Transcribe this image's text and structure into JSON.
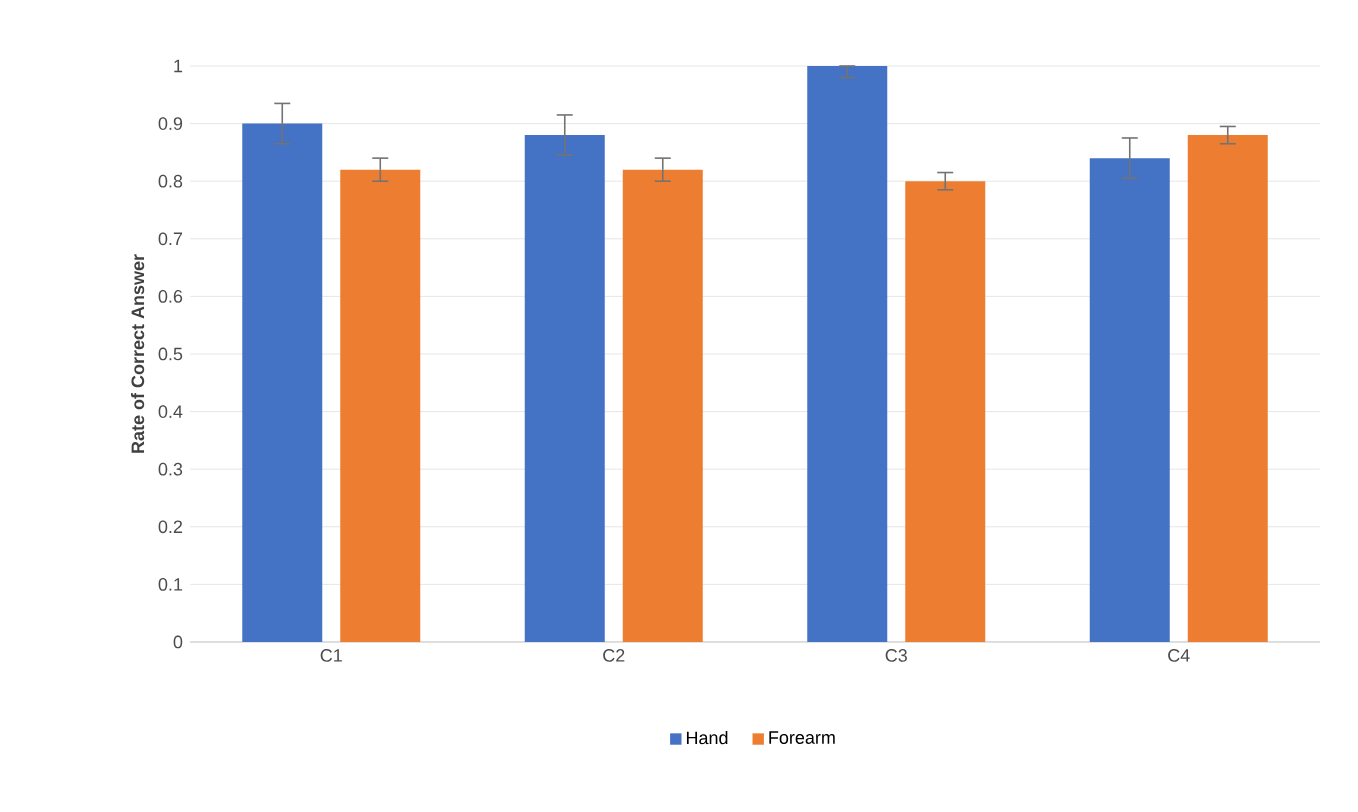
{
  "chart_data": {
    "type": "bar",
    "ylabel": "Rate of Correct Answer",
    "categories": [
      "C1",
      "C2",
      "C3",
      "C4"
    ],
    "series": [
      {
        "name": "Hand",
        "color": "#4472c4",
        "values": [
          0.9,
          0.88,
          1.0,
          0.84
        ],
        "errors": [
          0.035,
          0.035,
          [
            0.98,
            1.0
          ],
          0.035
        ]
      },
      {
        "name": "Forearm",
        "color": "#ed7d31",
        "values": [
          0.82,
          0.82,
          0.8,
          0.88
        ],
        "errors": [
          0.02,
          0.02,
          0.015,
          0.015
        ]
      }
    ],
    "ylim": [
      0,
      1
    ],
    "yticks": [
      0,
      0.1,
      0.2,
      0.3,
      0.4,
      0.5,
      0.6,
      0.7,
      0.8,
      0.9,
      1
    ],
    "grid": "y",
    "legend": "bottom"
  }
}
